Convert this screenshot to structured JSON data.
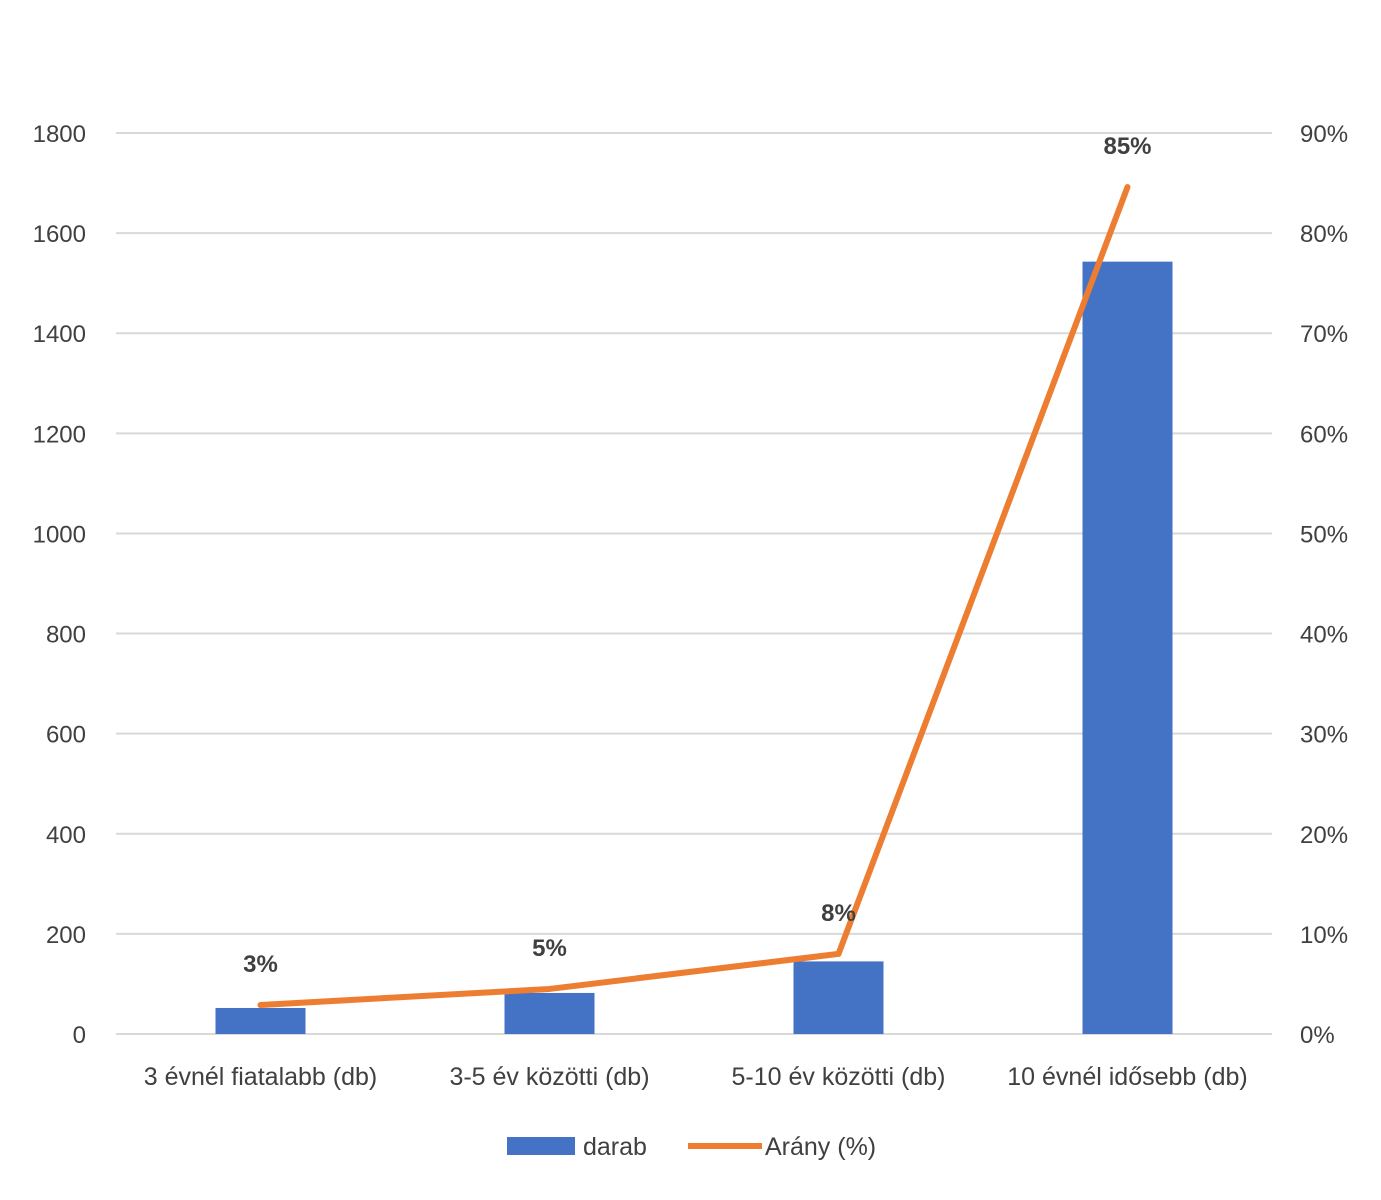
{
  "chart_data": {
    "type": "bar",
    "categories": [
      "3 évnél fiatalabb (db)",
      "3-5 év közötti (db)",
      "5-10 év közötti (db)",
      "10 évnél idősebb (db)"
    ],
    "series": [
      {
        "name": "darab",
        "type": "bar",
        "axis": "left",
        "values": [
          52,
          82,
          145,
          1543
        ],
        "color": "#4472C4"
      },
      {
        "name": "Arány (%)",
        "type": "line",
        "axis": "right",
        "values": [
          2.9,
          4.5,
          8.0,
          84.6
        ],
        "labels": [
          "3%",
          "5%",
          "8%",
          "85%"
        ],
        "color": "#ED7D31"
      }
    ],
    "y_left": {
      "min": 0,
      "max": 1800,
      "ticks": [
        0,
        200,
        400,
        600,
        800,
        1000,
        1200,
        1400,
        1600,
        1800
      ]
    },
    "y_right": {
      "min": 0,
      "max": 90,
      "ticks": [
        "0%",
        "10%",
        "20%",
        "30%",
        "40%",
        "50%",
        "60%",
        "70%",
        "80%",
        "90%"
      ]
    },
    "grid": true,
    "legend": "bottom",
    "title": "",
    "xlabel": "",
    "ylabel": ""
  }
}
